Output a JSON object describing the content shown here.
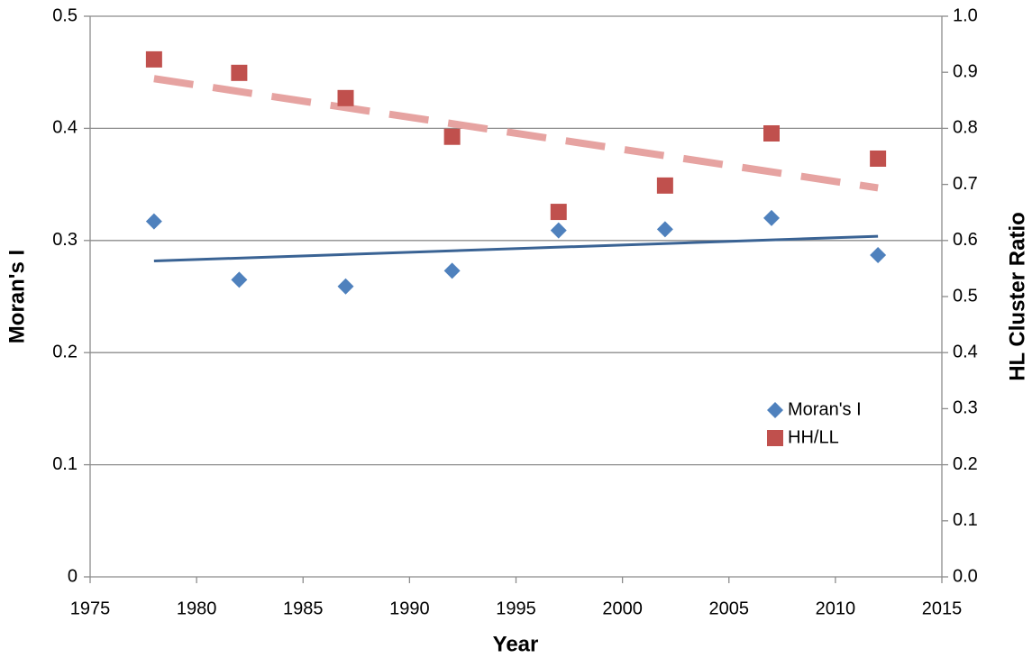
{
  "chart_data": {
    "type": "scatter",
    "x_label": "Year",
    "y_label": "Moran's I",
    "y2_label": "HL Cluster Ratio",
    "x": [
      1978,
      1982,
      1987,
      1992,
      1997,
      2002,
      2007,
      2012
    ],
    "series": [
      {
        "name": "Moran's I",
        "color": "#4f81bd",
        "marker": "diamond",
        "trendline": "linear",
        "trend_color": "#3a6394",
        "values": [
          0.317,
          0.265,
          0.259,
          0.273,
          0.309,
          0.31,
          0.32,
          0.287
        ]
      },
      {
        "name": "HH/LL",
        "color": "#c0504d",
        "marker": "square",
        "trendline": "linear",
        "trend_color": "#e6a3a1",
        "axis": "y2",
        "values": [
          0.923,
          0.899,
          0.854,
          0.785,
          0.651,
          0.698,
          0.791,
          0.746
        ]
      }
    ],
    "xlim": [
      1975,
      2015
    ],
    "xticks": [
      1975,
      1980,
      1985,
      1990,
      1995,
      2000,
      2005,
      2010,
      2015
    ],
    "ylim": [
      0,
      0.5
    ],
    "yticks": [
      0,
      0.1,
      0.2,
      0.3,
      0.4,
      0.5
    ],
    "y2lim": [
      0,
      1
    ],
    "y2ticks": [
      {
        "value": 0,
        "label": "0.0"
      },
      0.1,
      0.2,
      0.3,
      0.4,
      0.5,
      0.6,
      0.7,
      0.8,
      0.9,
      {
        "value": 1,
        "label": "1.0"
      }
    ],
    "grid": true,
    "legend": "inside-right"
  }
}
